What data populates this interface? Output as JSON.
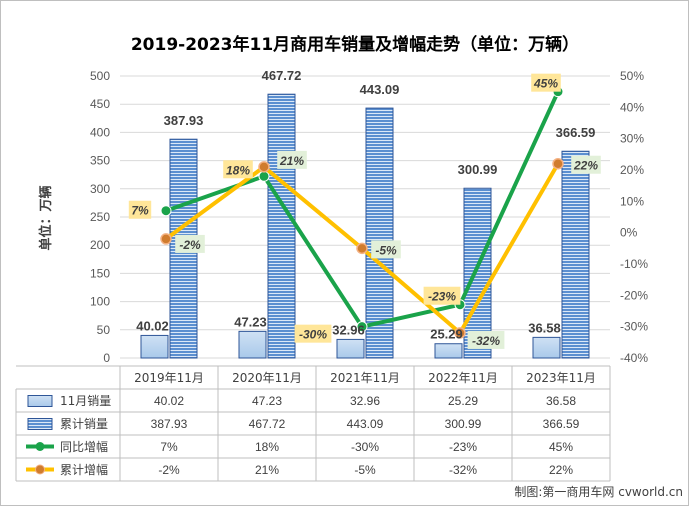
{
  "chart_data": {
    "type": "bar",
    "title": "2019-2023年11月商用车销量及增幅走势（单位：万辆）",
    "ylabel": "单位：万辆",
    "categories": [
      "2019年11月",
      "2020年11月",
      "2021年11月",
      "2022年11月",
      "2023年11月"
    ],
    "y_ticks": [
      "0",
      "50",
      "100",
      "150",
      "200",
      "250",
      "300",
      "350",
      "400",
      "450",
      "500"
    ],
    "y2_ticks": [
      "-40%",
      "-30%",
      "-20%",
      "-10%",
      "0%",
      "10%",
      "20%",
      "30%",
      "40%",
      "50%"
    ],
    "ylim": [
      0,
      500
    ],
    "y2lim": [
      -40,
      50
    ],
    "grid": true,
    "legend": "data-table",
    "series": [
      {
        "name": "11月销量",
        "type": "bar",
        "axis": "left",
        "values": [
          40.02,
          47.23,
          32.96,
          25.29,
          36.58
        ],
        "labels": [
          "40.02",
          "47.23",
          "32.96",
          "25.29",
          "36.58"
        ],
        "color": "#bdd7ee"
      },
      {
        "name": "累计销量",
        "type": "bar",
        "axis": "left",
        "values": [
          387.93,
          467.72,
          443.09,
          300.99,
          366.59
        ],
        "labels": [
          "387.93",
          "467.72",
          "443.09",
          "300.99",
          "366.59"
        ],
        "color": "#5b9bd5"
      },
      {
        "name": "同比增幅",
        "type": "line",
        "axis": "right",
        "values": [
          7,
          18,
          -30,
          -23,
          45
        ],
        "labels": [
          "7%",
          "18%",
          "-30%",
          "-23%",
          "45%"
        ],
        "color": "#1aa34a"
      },
      {
        "name": "累计增幅",
        "type": "line",
        "axis": "right",
        "values": [
          -2,
          21,
          -5,
          -32,
          22
        ],
        "labels": [
          "-2%",
          "21%",
          "-5%",
          "-32%",
          "22%"
        ],
        "color": "#ffc000"
      }
    ]
  },
  "credit": "制图:第一商用车网 cvworld.cn"
}
